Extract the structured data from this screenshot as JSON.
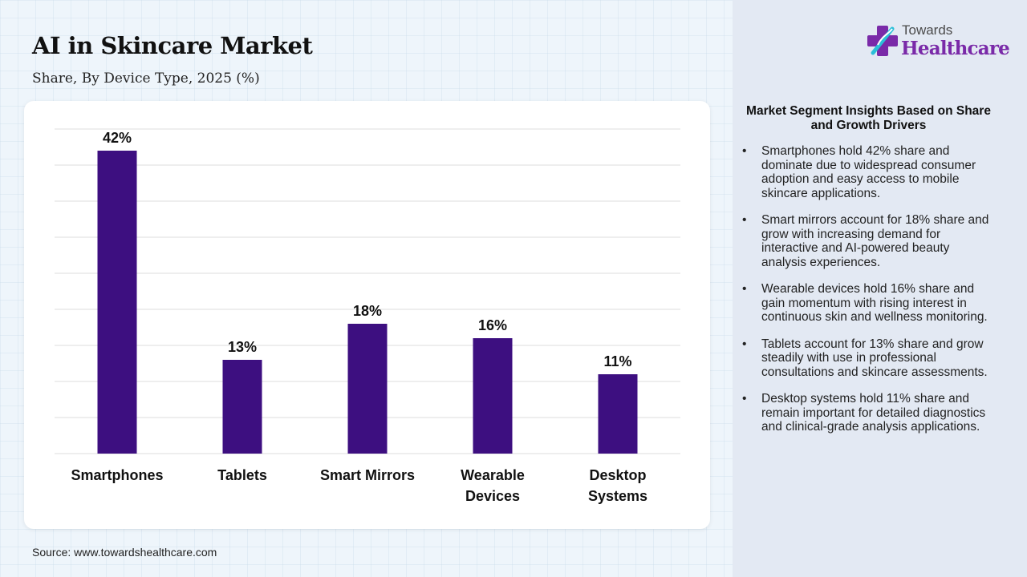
{
  "header": {
    "title": "AI in Skincare Market",
    "subtitle": "Share, By Device Type, 2025 (%)"
  },
  "logo": {
    "line1": "Towards",
    "line2": "Healthcare",
    "icon": "cross-plus-icon"
  },
  "source": "Source: www.towardshealthcare.com",
  "colors": {
    "bar": "#3d0f80",
    "brand": "#7a2aa8",
    "gridline": "#dcdcdc"
  },
  "insights": {
    "title": "Market Segment Insights Based on Share and Growth Drivers",
    "items": [
      "Smartphones hold 42% share and dominate due to widespread consumer adoption and easy access to mobile skincare applications.",
      "Smart mirrors account for 18% share and grow with increasing demand for interactive and AI-powered beauty analysis experiences.",
      "Wearable devices hold 16% share and gain momentum with rising interest in continuous skin and wellness monitoring.",
      "Tablets account for 13% share and grow steadily with use in professional consultations and skincare assessments.",
      "Desktop systems hold 11% share and remain important for detailed diagnostics and clinical-grade analysis applications."
    ]
  },
  "chart_data": {
    "type": "bar",
    "title": "AI in Skincare Market",
    "subtitle": "Share, By Device Type, 2025 (%)",
    "categories": [
      "Smartphones",
      "Tablets",
      "Smart Mirrors",
      "Wearable Devices",
      "Desktop Systems"
    ],
    "category_lines": [
      [
        "Smartphones"
      ],
      [
        "Tablets"
      ],
      [
        "Smart Mirrors"
      ],
      [
        "Wearable",
        "Devices"
      ],
      [
        "Desktop",
        "Systems"
      ]
    ],
    "values": [
      42,
      13,
      18,
      16,
      11
    ],
    "data_labels": [
      "42%",
      "13%",
      "18%",
      "16%",
      "11%"
    ],
    "ylim": [
      0,
      45
    ],
    "grid": true,
    "legend": "none"
  }
}
